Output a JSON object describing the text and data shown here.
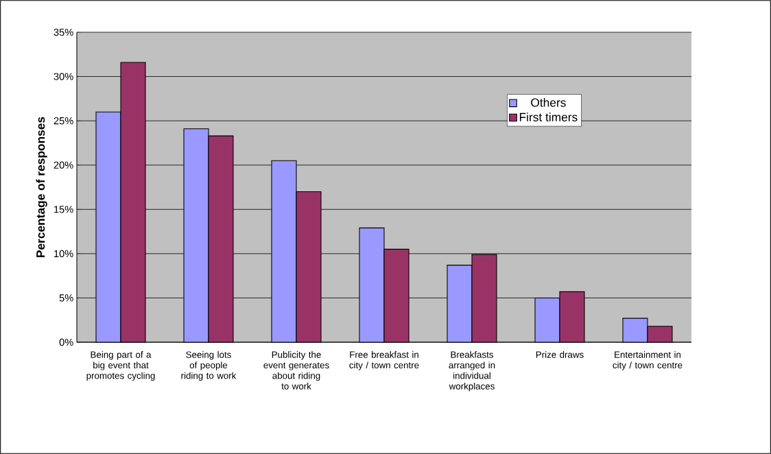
{
  "chart_data": {
    "type": "bar",
    "ylabel": "Percentage of responses",
    "categories": [
      "Being part of a big event that promotes cycling",
      "Seeing lots of people riding to work",
      "Publicity the event generates about riding to work",
      "Free breakfast in city / town centre",
      "Breakfasts arranged in individual workplaces",
      "Prize draws",
      "Entertainment in city / town centre"
    ],
    "series": [
      {
        "name": "Others",
        "color": "#9999ff",
        "values": [
          26.0,
          24.1,
          20.5,
          12.9,
          8.7,
          5.0,
          2.7
        ]
      },
      {
        "name": "First timers",
        "color": "#993366",
        "values": [
          31.6,
          23.3,
          17.0,
          10.5,
          9.9,
          5.7,
          1.8
        ]
      }
    ],
    "ylim": [
      0,
      35
    ],
    "yticks": [
      {
        "value": 0,
        "label": "0%"
      },
      {
        "value": 5,
        "label": "5%"
      },
      {
        "value": 10,
        "label": "10%"
      },
      {
        "value": 15,
        "label": "15%"
      },
      {
        "value": 20,
        "label": "20%"
      },
      {
        "value": 25,
        "label": "25%"
      },
      {
        "value": 30,
        "label": "30%"
      },
      {
        "value": 35,
        "label": "35%"
      }
    ],
    "grid": "y",
    "legend": "top right"
  }
}
